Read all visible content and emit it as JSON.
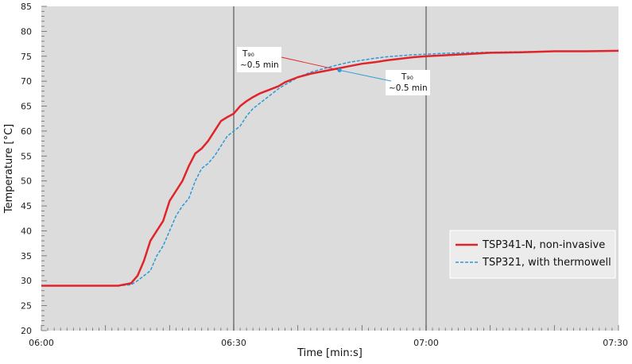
{
  "chart_data": {
    "type": "line",
    "xlabel": "Time [min:s]",
    "ylabel": "Temperature [°C]",
    "xlim": [
      0,
      90
    ],
    "ylim": [
      20,
      85
    ],
    "x_ticks": [
      {
        "value": 0,
        "label": "06:00"
      },
      {
        "value": 30,
        "label": "06:30"
      },
      {
        "value": 60,
        "label": "07:00"
      },
      {
        "value": 90,
        "label": "07:30"
      }
    ],
    "y_ticks": [
      20,
      25,
      30,
      35,
      40,
      45,
      50,
      55,
      60,
      65,
      70,
      75,
      80,
      85
    ],
    "grid": "major vertical lines at 06:30 and 07:00",
    "legend_position": "bottom-right",
    "series": [
      {
        "name": "TSP341-N, non-invasive",
        "color": "#e0242a",
        "style": "solid",
        "x": [
          0,
          12,
          14,
          15,
          16,
          17,
          18,
          19,
          20,
          21,
          22,
          23,
          24,
          25,
          26,
          27,
          28,
          29,
          30,
          31,
          32,
          33,
          34,
          35,
          36,
          37,
          38,
          39,
          40,
          42,
          44,
          46,
          48,
          50,
          52,
          54,
          56,
          58,
          60,
          63,
          66,
          70,
          75,
          80,
          85,
          90
        ],
        "y": [
          29,
          29,
          29.5,
          31,
          34,
          38,
          40,
          42,
          46,
          48,
          50,
          53,
          55.5,
          56.5,
          58,
          60,
          62,
          62.8,
          63.5,
          65,
          66,
          66.8,
          67.5,
          68,
          68.5,
          69,
          69.8,
          70.3,
          70.8,
          71.5,
          72,
          72.5,
          73,
          73.5,
          73.8,
          74.2,
          74.5,
          74.8,
          75,
          75.2,
          75.4,
          75.7,
          75.8,
          76,
          76,
          76.1
        ]
      },
      {
        "name": "TSP321, with thermowell",
        "color": "#2b9ad6",
        "style": "dashed",
        "x": [
          0,
          12,
          14,
          15,
          16,
          17,
          18,
          19,
          20,
          21,
          22,
          23,
          24,
          25,
          26,
          27,
          28,
          29,
          30,
          31,
          32,
          33,
          34,
          35,
          36,
          37,
          38,
          39,
          40,
          42,
          44,
          46,
          48,
          50,
          52,
          54,
          56,
          58,
          60,
          63,
          66,
          70,
          75,
          80,
          85,
          90
        ],
        "y": [
          29,
          29,
          29.2,
          30,
          31,
          32,
          35,
          37,
          40,
          43,
          45,
          46.5,
          50,
          52.5,
          53.5,
          55,
          57,
          59,
          60,
          61,
          63,
          64.5,
          65.5,
          66.5,
          67.5,
          68.5,
          69.3,
          70,
          70.8,
          71.8,
          72.5,
          73.2,
          73.8,
          74.2,
          74.6,
          74.9,
          75.1,
          75.3,
          75.4,
          75.6,
          75.7,
          75.8,
          75.9,
          76,
          76,
          76.1
        ]
      }
    ],
    "annotations": [
      {
        "symbol": "T₉₀",
        "text": "~0.5 min",
        "series": "TSP341-N, non-invasive"
      },
      {
        "symbol": "T₉₀",
        "text": "~0.5 min",
        "series": "TSP321, with thermowell"
      }
    ]
  }
}
